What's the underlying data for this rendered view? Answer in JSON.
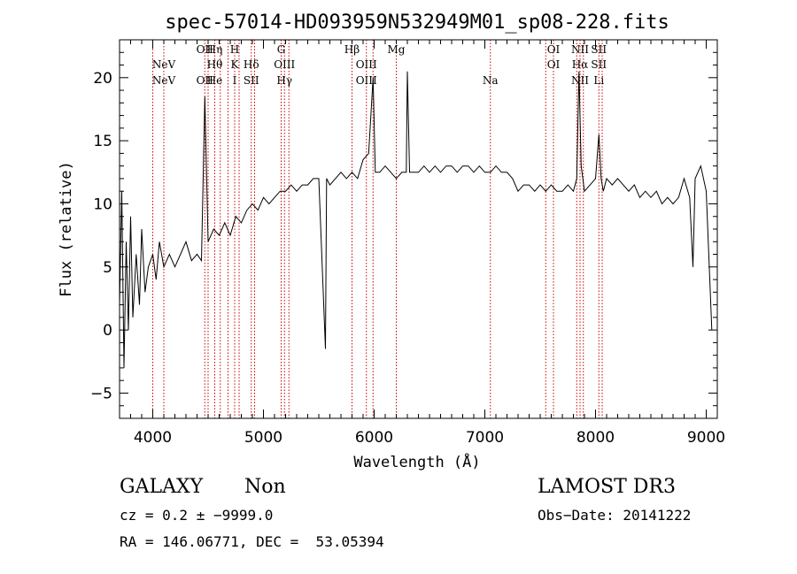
{
  "chart_data": {
    "type": "line",
    "title": "spec-57014-HD093959N532949M01_sp08-228.fits",
    "xlabel": "Wavelength (Å)",
    "ylabel": "Flux (relative)",
    "xlim": [
      3700,
      9100
    ],
    "ylim": [
      -7,
      23
    ],
    "x_ticks": [
      4000,
      5000,
      6000,
      7000,
      8000,
      9000
    ],
    "x_tick_labels": [
      "4000",
      "5000",
      "6000",
      "7000",
      "8000",
      "9000"
    ],
    "y_ticks": [
      -5,
      0,
      5,
      10,
      15,
      20
    ],
    "y_tick_labels": [
      "−5",
      "0",
      "5",
      "10",
      "15",
      "20"
    ],
    "grid": false,
    "series": [
      {
        "x": [
          3700,
          3720,
          3740,
          3760,
          3780,
          3800,
          3820,
          3850,
          3880,
          3900,
          3930,
          3960,
          4000,
          4030,
          4060,
          4100,
          4150,
          4200,
          4250,
          4300,
          4350,
          4400,
          4440,
          4470,
          4500,
          4550,
          4600,
          4650,
          4700,
          4750,
          4800,
          4850,
          4900,
          4950,
          5000,
          5050,
          5100,
          5150,
          5200,
          5250,
          5300,
          5350,
          5400,
          5450,
          5500,
          5560,
          5570,
          5600,
          5650,
          5700,
          5750,
          5800,
          5850,
          5900,
          5950,
          5990,
          6010,
          6050,
          6100,
          6150,
          6200,
          6250,
          6290,
          6300,
          6320,
          6350,
          6400,
          6450,
          6500,
          6550,
          6600,
          6650,
          6700,
          6750,
          6800,
          6850,
          6900,
          6950,
          7000,
          7050,
          7100,
          7150,
          7200,
          7250,
          7300,
          7350,
          7400,
          7450,
          7500,
          7550,
          7600,
          7650,
          7700,
          7750,
          7800,
          7830,
          7850,
          7870,
          7900,
          7950,
          8000,
          8030,
          8050,
          8070,
          8100,
          8150,
          8200,
          8250,
          8300,
          8350,
          8400,
          8450,
          8500,
          8550,
          8600,
          8650,
          8700,
          8750,
          8800,
          8850,
          8880,
          8900,
          8950,
          9000,
          9050
        ],
        "y": [
          2,
          11,
          -3,
          7,
          0,
          9,
          1,
          6,
          2,
          8,
          3,
          5,
          6,
          4,
          7,
          5,
          6,
          5,
          6,
          7,
          5.5,
          6,
          5.5,
          18.5,
          7,
          8,
          7.5,
          8.5,
          7.5,
          9,
          8.5,
          9.5,
          10,
          9.5,
          10.5,
          10,
          10.5,
          11,
          11,
          11.5,
          11,
          11.5,
          11.5,
          12,
          12,
          -1.5,
          12,
          11.5,
          12,
          12.5,
          12,
          12.5,
          12,
          13.5,
          14,
          20,
          12.5,
          12.5,
          13,
          12.5,
          12,
          12.5,
          12.5,
          20.5,
          12.5,
          12.5,
          12.5,
          13,
          12.5,
          13,
          12.5,
          13,
          13,
          12.5,
          13,
          13,
          12.5,
          13,
          12.5,
          12.5,
          13,
          12.5,
          12.5,
          12,
          11,
          11.5,
          11.5,
          11,
          11.5,
          11,
          11.5,
          11,
          11,
          11.5,
          11,
          12,
          20.5,
          13,
          11,
          11.5,
          12,
          15.5,
          12,
          11,
          12,
          11.5,
          12,
          11.5,
          11,
          11.5,
          10.5,
          11,
          10.5,
          11,
          10,
          10.5,
          10,
          10.5,
          12,
          10.5,
          5,
          12,
          13,
          11,
          0
        ]
      }
    ],
    "lines": [
      {
        "x": 4000,
        "top": "",
        "mid": "",
        "bottom": ""
      },
      {
        "x": 4100,
        "top": "",
        "mid": "NeV",
        "bottom": "NeV"
      },
      {
        "x": 4470,
        "top": "OII",
        "mid": "",
        "bottom": "OII"
      },
      {
        "x": 4500,
        "top": "",
        "mid": "",
        "bottom": ""
      },
      {
        "x": 4560,
        "top": "Hη",
        "mid": "Hθ",
        "bottom": "He"
      },
      {
        "x": 4610,
        "top": "",
        "mid": "",
        "bottom": ""
      },
      {
        "x": 4680,
        "top": "",
        "mid": "",
        "bottom": ""
      },
      {
        "x": 4740,
        "top": "H",
        "mid": "K",
        "bottom": "I"
      },
      {
        "x": 4780,
        "top": "",
        "mid": "",
        "bottom": ""
      },
      {
        "x": 4890,
        "top": "",
        "mid": "Hδ",
        "bottom": "SII"
      },
      {
        "x": 4920,
        "top": "",
        "mid": "",
        "bottom": ""
      },
      {
        "x": 5160,
        "top": "G",
        "mid": "",
        "bottom": ""
      },
      {
        "x": 5190,
        "top": "",
        "mid": "OIII",
        "bottom": "Hγ"
      },
      {
        "x": 5230,
        "top": "",
        "mid": "",
        "bottom": ""
      },
      {
        "x": 5800,
        "top": "Hβ",
        "mid": "",
        "bottom": ""
      },
      {
        "x": 5930,
        "top": "",
        "mid": "OIII",
        "bottom": "OIII"
      },
      {
        "x": 5990,
        "top": "",
        "mid": "",
        "bottom": ""
      },
      {
        "x": 6200,
        "top": "Mg",
        "mid": "",
        "bottom": ""
      },
      {
        "x": 7050,
        "top": "",
        "mid": "",
        "bottom": "Na"
      },
      {
        "x": 7550,
        "top": "",
        "mid": "",
        "bottom": ""
      },
      {
        "x": 7620,
        "top": "OI",
        "mid": "OI",
        "bottom": ""
      },
      {
        "x": 7830,
        "top": "",
        "mid": "",
        "bottom": ""
      },
      {
        "x": 7860,
        "top": "NII",
        "mid": "Hα",
        "bottom": "NII"
      },
      {
        "x": 7890,
        "top": "",
        "mid": "",
        "bottom": ""
      },
      {
        "x": 8030,
        "top": "SII",
        "mid": "SII",
        "bottom": "Li"
      },
      {
        "x": 8060,
        "top": "",
        "mid": "",
        "bottom": ""
      }
    ],
    "colors": {
      "spectrum": "#000000",
      "lines": "#cc0000",
      "axes": "#000000"
    }
  },
  "info": {
    "object_class": "GALAXY",
    "object_subclass": "Non",
    "survey": "LAMOST DR3",
    "redshift": "cz = 0.2 ± −9999.0",
    "obs_date": "Obs−Date: 20141222",
    "coords": "RA = 146.06771, DEC =  53.05394"
  }
}
